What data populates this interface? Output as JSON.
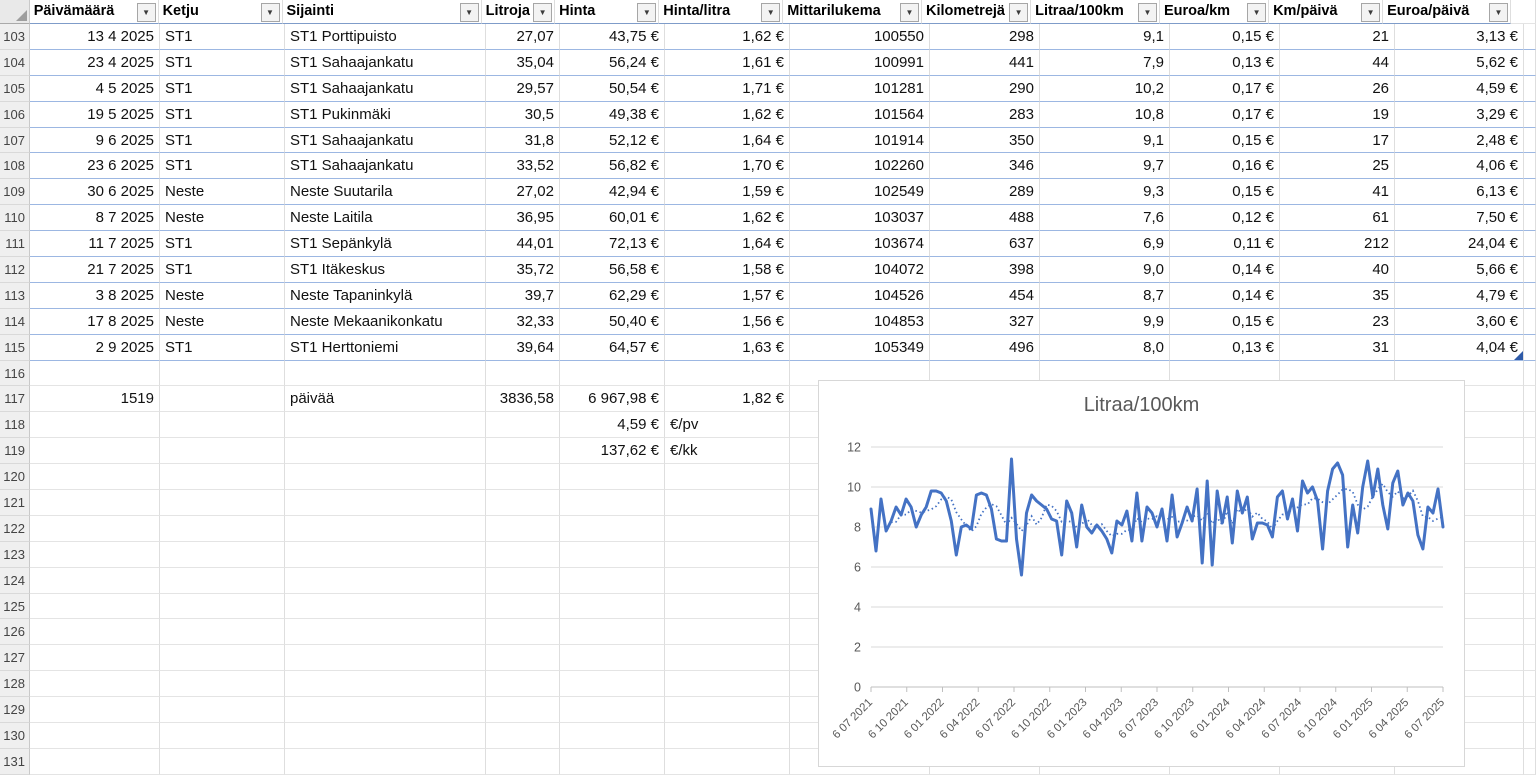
{
  "colors": {
    "chart_line": "#4472C4",
    "chart_text": "#595959",
    "table_row_border": "#9CB7E2",
    "grid_line": "#D9D9D9"
  },
  "table": {
    "columns": [
      {
        "key": "paivamaara",
        "label": "Päivämäärä"
      },
      {
        "key": "ketju",
        "label": "Ketju"
      },
      {
        "key": "sijainti",
        "label": "Sijainti"
      },
      {
        "key": "litroja",
        "label": "Litroja"
      },
      {
        "key": "hinta",
        "label": "Hinta"
      },
      {
        "key": "hinta-litra",
        "label": "Hinta/litra"
      },
      {
        "key": "mittarilukema",
        "label": "Mittarilukema"
      },
      {
        "key": "kilometreja",
        "label": "Kilometrejä"
      },
      {
        "key": "litraa-100km",
        "label": "Litraa/100km"
      },
      {
        "key": "euroa-km",
        "label": "Euroa/km"
      },
      {
        "key": "km-paiva",
        "label": "Km/päivä"
      },
      {
        "key": "euroa-paiva",
        "label": "Euroa/päivä"
      }
    ],
    "left_cells": [
      [
        118,
        5
      ],
      [
        119,
        5
      ]
    ],
    "rows": [
      {
        "n": 103,
        "t": true,
        "cells": [
          "13 4 2025",
          "ST1",
          "ST1 Porttipuisto",
          "27,07",
          "43,75 €",
          "1,62 €",
          "100550",
          "298",
          "9,1",
          "0,15 €",
          "21",
          "3,13 €"
        ]
      },
      {
        "n": 104,
        "t": true,
        "cells": [
          "23 4 2025",
          "ST1",
          "ST1 Sahaajankatu",
          "35,04",
          "56,24 €",
          "1,61 €",
          "100991",
          "441",
          "7,9",
          "0,13 €",
          "44",
          "5,62 €"
        ]
      },
      {
        "n": 105,
        "t": true,
        "cells": [
          "4 5 2025",
          "ST1",
          "ST1 Sahaajankatu",
          "29,57",
          "50,54 €",
          "1,71 €",
          "101281",
          "290",
          "10,2",
          "0,17 €",
          "26",
          "4,59 €"
        ]
      },
      {
        "n": 106,
        "t": true,
        "cells": [
          "19 5 2025",
          "ST1",
          "ST1 Pukinmäki",
          "30,5",
          "49,38 €",
          "1,62 €",
          "101564",
          "283",
          "10,8",
          "0,17 €",
          "19",
          "3,29 €"
        ]
      },
      {
        "n": 107,
        "t": true,
        "cells": [
          "9 6 2025",
          "ST1",
          "ST1 Sahaajankatu",
          "31,8",
          "52,12 €",
          "1,64 €",
          "101914",
          "350",
          "9,1",
          "0,15 €",
          "17",
          "2,48 €"
        ]
      },
      {
        "n": 108,
        "t": true,
        "cells": [
          "23 6 2025",
          "ST1",
          "ST1 Sahaajankatu",
          "33,52",
          "56,82 €",
          "1,70 €",
          "102260",
          "346",
          "9,7",
          "0,16 €",
          "25",
          "4,06 €"
        ]
      },
      {
        "n": 109,
        "t": true,
        "cells": [
          "30 6 2025",
          "Neste",
          "Neste Suutarila",
          "27,02",
          "42,94 €",
          "1,59 €",
          "102549",
          "289",
          "9,3",
          "0,15 €",
          "41",
          "6,13 €"
        ]
      },
      {
        "n": 110,
        "t": true,
        "cells": [
          "8 7 2025",
          "Neste",
          "Neste Laitila",
          "36,95",
          "60,01 €",
          "1,62 €",
          "103037",
          "488",
          "7,6",
          "0,12 €",
          "61",
          "7,50 €"
        ]
      },
      {
        "n": 111,
        "t": true,
        "cells": [
          "11 7 2025",
          "ST1",
          "ST1 Sepänkylä",
          "44,01",
          "72,13 €",
          "1,64 €",
          "103674",
          "637",
          "6,9",
          "0,11 €",
          "212",
          "24,04 €"
        ]
      },
      {
        "n": 112,
        "t": true,
        "cells": [
          "21 7 2025",
          "ST1",
          "ST1 Itäkeskus",
          "35,72",
          "56,58 €",
          "1,58 €",
          "104072",
          "398",
          "9,0",
          "0,14 €",
          "40",
          "5,66 €"
        ]
      },
      {
        "n": 113,
        "t": true,
        "cells": [
          "3 8 2025",
          "Neste",
          "Neste Tapaninkylä",
          "39,7",
          "62,29 €",
          "1,57 €",
          "104526",
          "454",
          "8,7",
          "0,14 €",
          "35",
          "4,79 €"
        ]
      },
      {
        "n": 114,
        "t": true,
        "cells": [
          "17 8 2025",
          "Neste",
          "Neste Mekaanikonkatu",
          "32,33",
          "50,40 €",
          "1,56 €",
          "104853",
          "327",
          "9,9",
          "0,15 €",
          "23",
          "3,60 €"
        ]
      },
      {
        "n": 115,
        "t": true,
        "cells": [
          "2 9 2025",
          "ST1",
          "ST1 Herttoniemi",
          "39,64",
          "64,57 €",
          "1,63 €",
          "105349",
          "496",
          "8,0",
          "0,13 €",
          "31",
          "4,04 €"
        ]
      },
      {
        "n": 116,
        "t": false,
        "cells": []
      },
      {
        "n": 117,
        "t": false,
        "cells": [
          "1519",
          "",
          "päivää",
          "3836,58",
          "6 967,98 €",
          "1,82 €",
          "",
          "",
          "",
          "",
          "",
          ""
        ]
      },
      {
        "n": 118,
        "t": false,
        "cells": [
          "",
          "",
          "",
          "",
          "4,59 €",
          "€/pv",
          "",
          "",
          "",
          "",
          "",
          ""
        ]
      },
      {
        "n": 119,
        "t": false,
        "cells": [
          "",
          "",
          "",
          "",
          "137,62 €",
          "€/kk",
          "",
          "",
          "",
          "",
          "",
          ""
        ]
      },
      {
        "n": 120,
        "t": false,
        "cells": []
      },
      {
        "n": 121,
        "t": false,
        "cells": []
      },
      {
        "n": 122,
        "t": false,
        "cells": []
      },
      {
        "n": 123,
        "t": false,
        "cells": []
      },
      {
        "n": 124,
        "t": false,
        "cells": []
      },
      {
        "n": 125,
        "t": false,
        "cells": []
      },
      {
        "n": 126,
        "t": false,
        "cells": []
      },
      {
        "n": 127,
        "t": false,
        "cells": []
      },
      {
        "n": 128,
        "t": false,
        "cells": []
      },
      {
        "n": 129,
        "t": false,
        "cells": []
      },
      {
        "n": 130,
        "t": false,
        "cells": []
      },
      {
        "n": 131,
        "t": false,
        "cells": []
      }
    ]
  },
  "chart_data": {
    "type": "line",
    "title": "Litraa/100km",
    "xlabel": "",
    "ylabel": "",
    "ylim": [
      0,
      12
    ],
    "yticks": [
      0,
      2,
      4,
      6,
      8,
      10,
      12
    ],
    "grid": true,
    "legend": "none",
    "x_tick_labels": [
      "6 07 2021",
      "6 10 2021",
      "6 01 2022",
      "6 04 2022",
      "6 07 2022",
      "6 10 2022",
      "6 01 2023",
      "6 04 2023",
      "6 07 2023",
      "6 10 2023",
      "6 01 2024",
      "6 04 2024",
      "6 07 2024",
      "6 10 2024",
      "6 01 2025",
      "6 04 2025",
      "6 07 2025"
    ],
    "series": [
      {
        "name": "Litraa/100km",
        "values": [
          8.9,
          6.8,
          9.4,
          7.8,
          8.3,
          9.0,
          8.6,
          9.4,
          9.0,
          8.0,
          8.6,
          9.0,
          9.8,
          9.8,
          9.7,
          9.3,
          8.3,
          6.6,
          8.0,
          8.1,
          7.9,
          9.6,
          9.7,
          9.6,
          8.9,
          7.4,
          7.3,
          7.3,
          11.4,
          7.4,
          5.6,
          8.7,
          9.6,
          9.3,
          9.1,
          8.9,
          8.4,
          8.3,
          6.6,
          9.3,
          8.7,
          7.0,
          9.1,
          8.0,
          7.7,
          8.1,
          7.8,
          7.4,
          6.7,
          8.3,
          8.1,
          8.8,
          7.3,
          9.7,
          7.3,
          9.0,
          8.7,
          8.0,
          8.9,
          7.3,
          9.6,
          7.5,
          8.2,
          9.0,
          8.3,
          9.9,
          6.2,
          10.3,
          6.1,
          9.8,
          8.2,
          9.5,
          7.2,
          9.8,
          8.7,
          9.5,
          7.4,
          8.2,
          8.2,
          8.1,
          7.5,
          9.5,
          9.8,
          8.4,
          9.4,
          7.8,
          10.3,
          9.7,
          10.0,
          9.3,
          6.9,
          9.8,
          10.9,
          11.2,
          10.6,
          7.0,
          9.1,
          7.7,
          10.0,
          11.3,
          9.5,
          10.9,
          9.1,
          7.9,
          10.2,
          10.8,
          9.1,
          9.7,
          9.3,
          7.6,
          6.9,
          9.0,
          8.7,
          9.9,
          8.0
        ]
      }
    ],
    "trendline": {
      "type": "moving_average",
      "period": 5,
      "style": "dotted"
    }
  }
}
